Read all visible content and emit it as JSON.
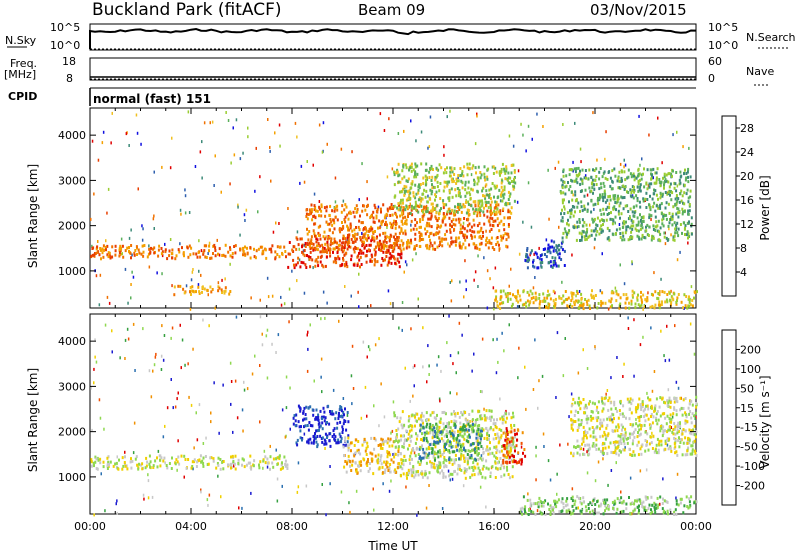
{
  "header": {
    "station": "Buckland Park (fitACF)",
    "beam": "Beam 09",
    "date": "03/Nov/2015"
  },
  "top_panels": {
    "nsky_label": "N.Sky",
    "nsearch_label": "N.Search",
    "nsky_ticks": [
      "10^5",
      "10^0"
    ],
    "nsearch_ticks": [
      "10^5",
      "10^0"
    ],
    "freq_label": "Freq.",
    "freq_unit": "[MHz]",
    "freq_ticks": [
      "18",
      "8"
    ],
    "nave_label": "Nave",
    "nave_ticks": [
      "60",
      "0"
    ],
    "cpid_label": "CPID",
    "cpid_text": "normal (fast) 151"
  },
  "chart_data": [
    {
      "type": "heatmap",
      "name": "power-rti",
      "xlabel": "",
      "ylabel": "Slant Range [km]",
      "xlim": [
        0,
        24
      ],
      "ylim": [
        180,
        4600
      ],
      "yticks": [
        1000,
        2000,
        3000,
        4000
      ],
      "colorbar": {
        "label": "Power [dB]",
        "ticks": [
          "4",
          "8",
          "12",
          "16",
          "20",
          "24",
          "28"
        ],
        "colors": [
          "#1010e0",
          "#2e5fae",
          "#3c8a78",
          "#5bb05b",
          "#9acd32",
          "#f0c020",
          "#f4a000",
          "#f07000",
          "#e83e00",
          "#e00000"
        ]
      },
      "bands": [
        {
          "x": [
            0,
            7.8
          ],
          "y": [
            1300,
            1600
          ],
          "level": 7
        },
        {
          "x": [
            7.8,
            12.3
          ],
          "y": [
            1100,
            1800
          ],
          "level": 8
        },
        {
          "x": [
            8.5,
            16.6
          ],
          "y": [
            1500,
            2500
          ],
          "level": 7
        },
        {
          "x": [
            12.0,
            16.8
          ],
          "y": [
            2300,
            3400
          ],
          "level": 4
        },
        {
          "x": [
            17.2,
            18.8
          ],
          "y": [
            1100,
            1700
          ],
          "level": 1
        },
        {
          "x": [
            18.6,
            23.8
          ],
          "y": [
            1700,
            3300
          ],
          "level": 3
        },
        {
          "x": [
            3.2,
            5.6
          ],
          "y": [
            500,
            700
          ],
          "level": 6
        },
        {
          "x": [
            16.0,
            24
          ],
          "y": [
            200,
            600
          ],
          "level": 5
        }
      ]
    },
    {
      "type": "heatmap",
      "name": "velocity-rti",
      "xlabel": "Time UT",
      "ylabel": "Slant Range [km]",
      "xlim": [
        0,
        24
      ],
      "ylim": [
        180,
        4600
      ],
      "yticks": [
        1000,
        2000,
        3000,
        4000
      ],
      "xticks": [
        "00:00",
        "04:00",
        "08:00",
        "12:00",
        "16:00",
        "20:00",
        "00:00"
      ],
      "colorbar": {
        "label": "Velocity [m s⁻¹]",
        "ticks": [
          "200",
          "100",
          "50",
          "15",
          "-15",
          "-50",
          "-100",
          "-200"
        ],
        "colors": [
          "#1a1ad0",
          "#2a6fb0",
          "#35a040",
          "#8fd850",
          "#c8c8c8",
          "#f0d000",
          "#f09000",
          "#f05000",
          "#e00000"
        ]
      },
      "bands": [
        {
          "x": [
            0,
            7.8
          ],
          "y": [
            1200,
            1500
          ],
          "level": 4
        },
        {
          "x": [
            8.0,
            10.2
          ],
          "y": [
            1700,
            2600
          ],
          "level": 0
        },
        {
          "x": [
            10.0,
            12.2
          ],
          "y": [
            1100,
            1900
          ],
          "level": 5
        },
        {
          "x": [
            12.0,
            16.8
          ],
          "y": [
            1000,
            2500
          ],
          "level": 4
        },
        {
          "x": [
            13.0,
            15.5
          ],
          "y": [
            1400,
            2200
          ],
          "level": 2
        },
        {
          "x": [
            16.3,
            17.2
          ],
          "y": [
            1300,
            2100
          ],
          "level": 7
        },
        {
          "x": [
            19.0,
            24
          ],
          "y": [
            1500,
            2800
          ],
          "level": 4
        },
        {
          "x": [
            17.0,
            24
          ],
          "y": [
            200,
            600
          ],
          "level": 3
        }
      ]
    }
  ]
}
